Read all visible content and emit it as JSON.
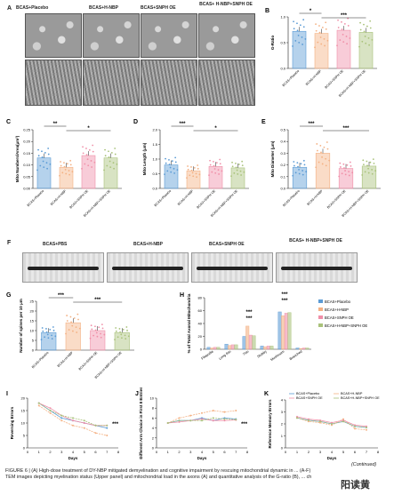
{
  "panels": {
    "A": {
      "letter": "A",
      "groups": [
        "BCAS+Placebo",
        "BCAS+H-NBP",
        "BCAS+SNPH OE",
        "BCAS+ H-NBP+SNPH OE"
      ]
    },
    "F": {
      "letter": "F",
      "groups": [
        "BCAS+PBS",
        "BCAS+H-NBP",
        "BCAS+SNPH OE",
        "BCAS+ H-NBP+SNPH OE"
      ]
    }
  },
  "groups": [
    "BCAS+Placebo",
    "BCAS+H-NBP",
    "BCAS+SNPH OE",
    "BCAS+H-NBP+SNPH OE"
  ],
  "colors": {
    "g1": "#5b9bd5",
    "g2": "#f4b183",
    "g3": "#f08fa8",
    "g4": "#a9c27a"
  },
  "chart_data": [
    {
      "panel": "B",
      "type": "bar",
      "ylabel": "G-Ratio",
      "categories": [
        "BCAS+Placebo",
        "BCAS+H-NBP",
        "BCAS+SNPH OE",
        "BCAS+H-NBP+SNPH OE"
      ],
      "values": [
        0.72,
        0.68,
        0.74,
        0.7
      ],
      "ylim": [
        0,
        1.0
      ],
      "yticks": [
        "0.0",
        "0.5",
        "1.0"
      ],
      "sig": [
        "*",
        "***"
      ]
    },
    {
      "panel": "C",
      "type": "bar",
      "ylabel": "Mito Numbers/Area(μm²)",
      "categories": [
        "BCAS+Placebo",
        "BCAS+H-NBP",
        "BCAS+SNPH OE",
        "BCAS+H-NBP+SNPH OE"
      ],
      "values": [
        0.13,
        0.09,
        0.14,
        0.13
      ],
      "ylim": [
        0,
        0.25
      ],
      "yticks": [
        "0.00",
        "0.05",
        "0.10",
        "0.15",
        "0.20",
        "0.25"
      ],
      "sig": [
        "**",
        "*"
      ]
    },
    {
      "panel": "D",
      "type": "bar",
      "ylabel": "Mito Length (μm)",
      "categories": [
        "BCAS+Placebo",
        "BCAS+H-NBP",
        "BCAS+SNPH OE",
        "BCAS+H-NBP+SNPH OE"
      ],
      "values": [
        0.8,
        0.6,
        0.75,
        0.7
      ],
      "ylim": [
        0,
        2.0
      ],
      "yticks": [
        "0.0",
        "0.5",
        "1.0",
        "1.5",
        "2.0"
      ],
      "sig": [
        "***",
        "*"
      ]
    },
    {
      "panel": "E",
      "type": "bar",
      "ylabel": "Mito Diameter (μm)",
      "categories": [
        "BCAS+Placebo",
        "BCAS+H-NBP",
        "BCAS+SNPH OE",
        "BCAS+H-NBP+SNPH OE"
      ],
      "values": [
        0.18,
        0.3,
        0.17,
        0.19
      ],
      "ylim": [
        0,
        0.5
      ],
      "yticks": [
        "0.0",
        "0.1",
        "0.2",
        "0.3",
        "0.4",
        "0.5"
      ],
      "sig": [
        "***",
        "***"
      ]
    },
    {
      "panel": "G",
      "type": "bar",
      "ylabel": "Number of spines per 10 μm",
      "categories": [
        "BCAS+Placebo",
        "BCAS+H-NBP",
        "BCAS+SNPH OE",
        "BCAS+H-NBP+SNPH OE"
      ],
      "values": [
        9,
        14,
        10,
        9
      ],
      "ylim": [
        0,
        25
      ],
      "yticks": [
        "0",
        "5",
        "10",
        "15",
        "20",
        "25"
      ],
      "sig": [
        "***",
        "***"
      ]
    },
    {
      "panel": "H",
      "type": "bar",
      "ylabel": "% of Total Axonal Mitochondria",
      "categories": [
        "Filopodia",
        "Long thin",
        "Thin",
        "Stubby",
        "Mushroom",
        "Branched"
      ],
      "series": [
        {
          "name": "BCAS+Placebo",
          "values": [
            3,
            8,
            20,
            5,
            58,
            2
          ]
        },
        {
          "name": "BCAS+H-NBP",
          "values": [
            2,
            6,
            36,
            4,
            52,
            1
          ]
        },
        {
          "name": "BCAS+SNPH OE",
          "values": [
            3,
            7,
            22,
            5,
            56,
            2
          ]
        },
        {
          "name": "BCAS+H-NBP+SNPH OE",
          "values": [
            3,
            7,
            21,
            5,
            57,
            2
          ]
        }
      ],
      "ylim": [
        0,
        80
      ],
      "yticks": [
        "0",
        "20",
        "40",
        "60",
        "80"
      ],
      "sig": [
        "***",
        "***",
        "***",
        "***"
      ]
    },
    {
      "panel": "I",
      "type": "line",
      "ylabel": "Reversing Errors",
      "xlabel": "Days",
      "x": [
        1,
        2,
        3,
        4,
        5,
        6,
        7
      ],
      "series": [
        {
          "name": "BCAS+Placebo",
          "values": [
            18,
            15,
            12,
            11,
            10,
            9,
            8
          ]
        },
        {
          "name": "BCAS+H-NBP",
          "values": [
            17,
            14,
            11,
            9,
            8,
            6,
            5
          ]
        },
        {
          "name": "BCAS+SNPH OE",
          "values": [
            18,
            16,
            13,
            11,
            10,
            9,
            9
          ]
        },
        {
          "name": "BCAS+H-NBP+SNPH OE",
          "values": [
            18,
            15,
            13,
            12,
            11,
            9,
            9
          ]
        }
      ],
      "ylim": [
        0,
        20
      ],
      "yticks": [
        "0",
        "5",
        "10",
        "15",
        "20"
      ],
      "sig": [
        "***"
      ]
    },
    {
      "panel": "J",
      "type": "line",
      "ylabel": "Different Arm Choice in First 8 Entries",
      "xlabel": "Days",
      "x": [
        1,
        2,
        3,
        4,
        5,
        6,
        7
      ],
      "series": [
        {
          "name": "BCAS+Placebo",
          "values": [
            5,
            5.5,
            5.5,
            6,
            5.5,
            6,
            5.8
          ]
        },
        {
          "name": "BCAS+H-NBP",
          "values": [
            5,
            6,
            6.5,
            7,
            7.5,
            7.2,
            7.5
          ]
        },
        {
          "name": "BCAS+SNPH OE",
          "values": [
            5,
            5.2,
            5.5,
            5.8,
            5.5,
            5.5,
            5.6
          ]
        },
        {
          "name": "BCAS+H-NBP+SNPH OE",
          "values": [
            5,
            5.5,
            5.5,
            5.5,
            6,
            5.8,
            5.7
          ]
        }
      ],
      "ylim": [
        0,
        10
      ],
      "yticks": [
        "0",
        "2",
        "4",
        "6",
        "8",
        "10"
      ],
      "sig": [
        "***"
      ]
    },
    {
      "panel": "K",
      "type": "line",
      "ylabel": "Reference Memory Errors",
      "xlabel": "Days",
      "x": [
        1,
        2,
        3,
        4,
        5,
        6,
        7
      ],
      "series": [
        {
          "name": "BCAS+Placebo",
          "values": [
            2.5,
            2.3,
            2.2,
            2.0,
            2.2,
            1.8,
            1.7
          ]
        },
        {
          "name": "BCAS+H-NBP",
          "values": [
            2.5,
            2.2,
            2.1,
            1.9,
            2.4,
            1.6,
            1.5
          ]
        },
        {
          "name": "BCAS+SNPH OE",
          "values": [
            2.6,
            2.4,
            2.3,
            2.1,
            2.3,
            1.9,
            1.8
          ]
        },
        {
          "name": "BCAS+H-NBP+SNPH OE",
          "values": [
            2.5,
            2.3,
            2.2,
            2.0,
            2.2,
            1.8,
            1.7
          ]
        }
      ],
      "ylim": [
        0,
        4
      ],
      "yticks": [
        "0",
        "1",
        "2",
        "3",
        "4"
      ],
      "legend": [
        "BCAS+Placebo",
        "BCAS+H-NBP",
        "BCAS+SNPH OE",
        "BCAS+H-NBP+SNPH OE"
      ]
    }
  ],
  "caption": {
    "line1": "FIGURE 6 | (A) High-dose treatment of DY-NBP mitigated demyelination and cognitive impairment by rescuing mitochondrial dynamic in ... (A-F)",
    "line2": "TEM images depicting myelination status (Upper panel) and mitochondrial load in the axons (A) and quantitative analysis of the G-ratio (B), ... ch",
    "continued": "(Continued)"
  },
  "watermark": "阳读黄"
}
